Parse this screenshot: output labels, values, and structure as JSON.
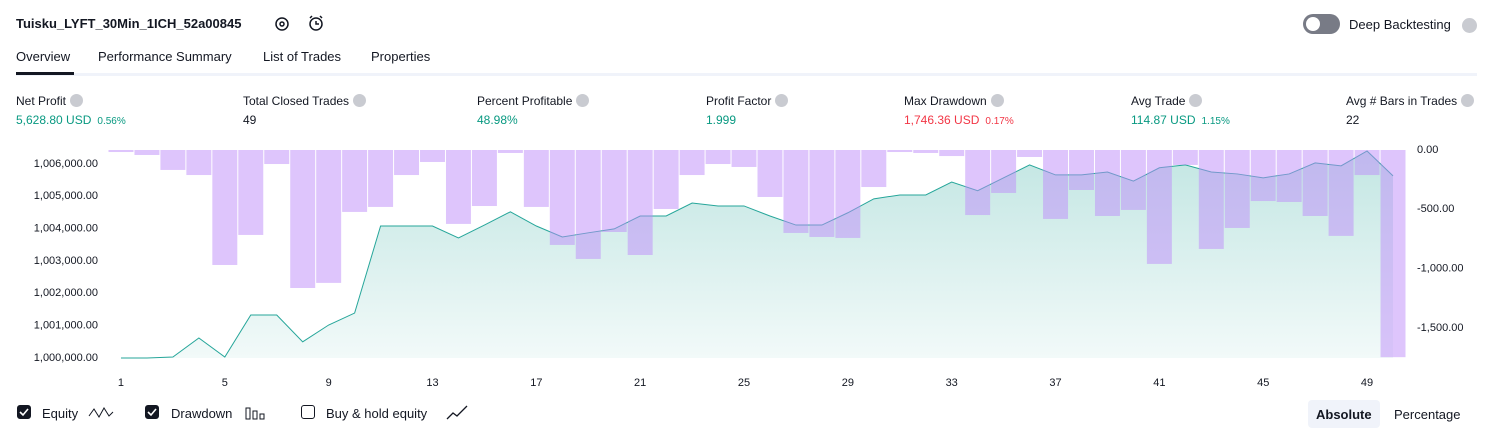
{
  "header": {
    "title": "Tuisku_LYFT_30Min_1ICH_52a00845",
    "deep_backtesting": "Deep Backtesting"
  },
  "tabs": [
    "Overview",
    "Performance Summary",
    "List of Trades",
    "Properties"
  ],
  "metrics": [
    {
      "label": "Net Profit",
      "value": "5,628.80 USD",
      "sub": "0.56%",
      "color": "#089981"
    },
    {
      "label": "Total Closed Trades",
      "value": "49",
      "color": "#131722"
    },
    {
      "label": "Percent Profitable",
      "value": "48.98%",
      "color": "#089981"
    },
    {
      "label": "Profit Factor",
      "value": "1.999",
      "color": "#089981"
    },
    {
      "label": "Max Drawdown",
      "value": "1,746.36 USD",
      "sub": "0.17%",
      "color": "#f23645"
    },
    {
      "label": "Avg Trade",
      "value": "114.87 USD",
      "sub": "1.15%",
      "color": "#089981"
    },
    {
      "label": "Avg # Bars in Trades",
      "value": "22",
      "color": "#131722"
    }
  ],
  "chart_data": {
    "type": "line",
    "x": [
      1,
      2,
      3,
      4,
      5,
      6,
      7,
      8,
      9,
      10,
      11,
      12,
      13,
      14,
      15,
      16,
      17,
      18,
      19,
      20,
      21,
      22,
      23,
      24,
      25,
      26,
      27,
      28,
      29,
      30,
      31,
      32,
      33,
      34,
      35,
      36,
      37,
      38,
      39,
      40,
      41,
      42,
      43,
      44,
      45,
      46,
      47,
      48,
      49,
      50
    ],
    "xlim": [
      0.5,
      50.5
    ],
    "xticks": [
      1,
      5,
      9,
      13,
      17,
      21,
      25,
      29,
      33,
      37,
      41,
      45,
      49
    ],
    "ylim": [
      1000000,
      1006430
    ],
    "yticks": [
      {
        "value": 1000000,
        "label": "1,000,000.00"
      },
      {
        "value": 1001000,
        "label": "1,001,000.00"
      },
      {
        "value": 1002000,
        "label": "1,002,000.00"
      },
      {
        "value": 1003000,
        "label": "1,003,000.00"
      },
      {
        "value": 1004000,
        "label": "1,004,000.00"
      },
      {
        "value": 1005000,
        "label": "1,005,000.00"
      },
      {
        "value": 1006000,
        "label": "1,006,000.00"
      }
    ],
    "y2lim": [
      -1753,
      0
    ],
    "y2ticks": [
      {
        "value": 0,
        "label": "0.00"
      },
      {
        "value": -500,
        "label": "-500.00"
      },
      {
        "value": -1000,
        "label": "-1,000.00"
      },
      {
        "value": -1500,
        "label": "-1,500.00"
      }
    ],
    "grid": false,
    "series": [
      {
        "name": "Equity",
        "color": "#26a69a",
        "checked": true,
        "values": [
          1000000,
          1000000,
          1000030,
          1000620,
          1000030,
          1001330,
          1001330,
          1000500,
          1001020,
          1001390,
          1004080,
          1004080,
          1004080,
          1003710,
          1004110,
          1004520,
          1004080,
          1003740,
          1003870,
          1003990,
          1004390,
          1004390,
          1004790,
          1004700,
          1004700,
          1004390,
          1004110,
          1004110,
          1004490,
          1004920,
          1005040,
          1005040,
          1005440,
          1005170,
          1005570,
          1005970,
          1005660,
          1005660,
          1005750,
          1005470,
          1005880,
          1005970,
          1005750,
          1005690,
          1005570,
          1005690,
          1006030,
          1005940,
          1006400,
          1005630
        ]
      },
      {
        "name": "Drawdown",
        "color": "#be8cfa",
        "axis": "y2",
        "checked": true,
        "values": [
          -17,
          -42,
          -168,
          -211,
          -969,
          -716,
          -118,
          -1163,
          -1120,
          -522,
          -480,
          -211,
          -101,
          -623,
          -472,
          -25,
          -480,
          -800,
          -918,
          -691,
          -885,
          -497,
          -211,
          -118,
          -143,
          -396,
          -699,
          -733,
          -741,
          -312,
          -17,
          -25,
          -51,
          -548,
          -362,
          -59,
          -581,
          -337,
          -556,
          -505,
          -960,
          -126,
          -834,
          -657,
          -430,
          -438,
          -556,
          -724,
          -211,
          -1746
        ]
      }
    ],
    "buy_hold": {
      "name": "Buy & hold equity",
      "checked": false
    }
  },
  "scale_buttons": [
    "Absolute",
    "Percentage"
  ]
}
